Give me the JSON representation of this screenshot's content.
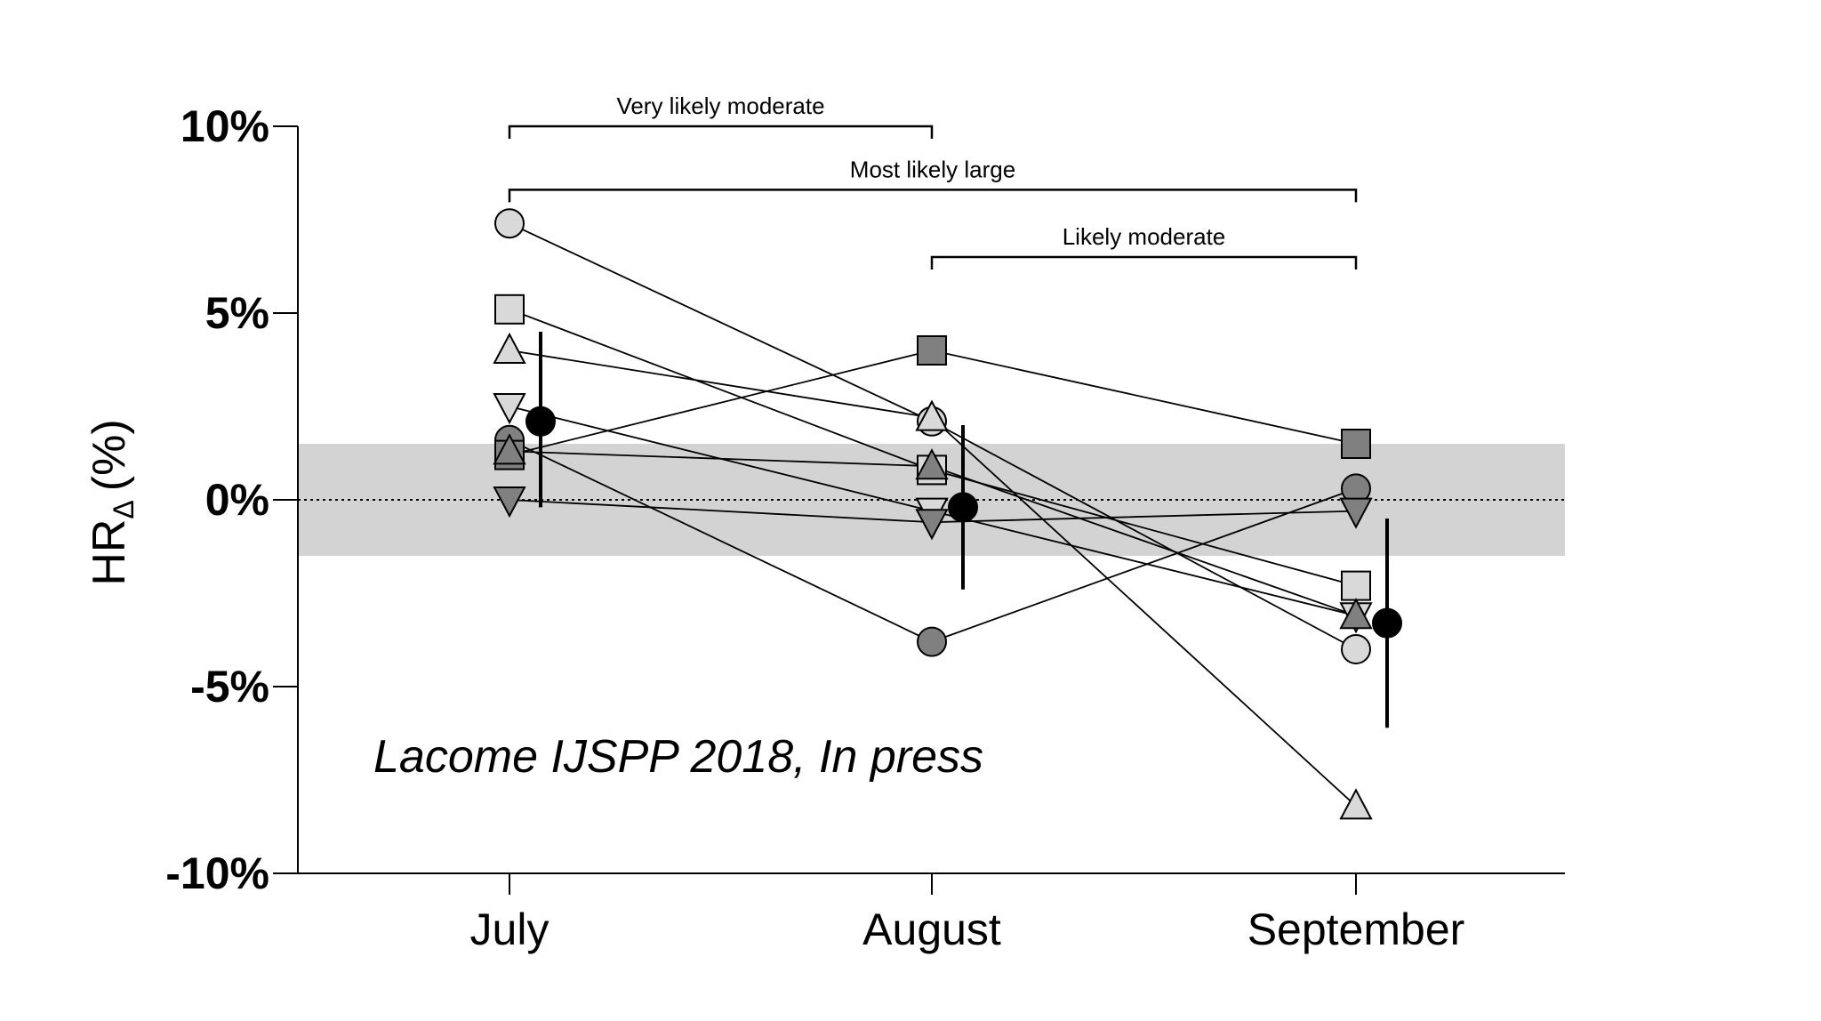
{
  "chart_data": {
    "type": "line",
    "categories": [
      "July",
      "August",
      "September"
    ],
    "ylabel": {
      "main": "HR",
      "subscript": "Δ",
      "unit": "(%)"
    },
    "ylim": [
      -10,
      10
    ],
    "yticks": [
      10,
      5,
      0,
      -5,
      -10
    ],
    "ytick_labels": [
      "10%",
      "5%",
      "0%",
      "-5%",
      "-10%"
    ],
    "trivial_band": [
      -1.5,
      1.5
    ],
    "reference_line": 0,
    "series": [
      {
        "marker": "circle",
        "fill": "#d9d9d9",
        "values": [
          7.4,
          2.1,
          -4.0
        ]
      },
      {
        "marker": "square",
        "fill": "#d9d9d9",
        "values": [
          5.1,
          0.8,
          -2.3
        ]
      },
      {
        "marker": "triangle",
        "fill": "#d9d9d9",
        "values": [
          4.0,
          2.2,
          -8.2
        ]
      },
      {
        "marker": "triangle-down",
        "fill": "#d9d9d9",
        "values": [
          2.5,
          -0.3,
          -3.1
        ]
      },
      {
        "marker": "circle",
        "fill": "#808080",
        "values": [
          1.6,
          -3.8,
          0.3
        ]
      },
      {
        "marker": "square",
        "fill": "#808080",
        "values": [
          1.2,
          4.0,
          1.5
        ]
      },
      {
        "marker": "triangle",
        "fill": "#808080",
        "values": [
          1.3,
          0.9,
          -3.1
        ]
      },
      {
        "marker": "triangle-down",
        "fill": "#808080",
        "values": [
          0.0,
          -0.6,
          -0.3
        ]
      }
    ],
    "mean_series": {
      "marker": "circle",
      "fill": "#000000",
      "values": [
        2.1,
        -0.2,
        -3.3
      ],
      "error_low": [
        -0.2,
        -2.4,
        -6.1
      ],
      "error_high": [
        4.5,
        2.0,
        -0.5
      ]
    },
    "brackets": [
      {
        "from": 0,
        "to": 1,
        "level": 10,
        "label": "Very likely moderate"
      },
      {
        "from": 0,
        "to": 2,
        "level": 8.3,
        "label": "Most likely large"
      },
      {
        "from": 1,
        "to": 2,
        "level": 6.5,
        "label": "Likely moderate"
      }
    ],
    "annotation": "Lacome IJSPP 2018, In press"
  },
  "colors": {
    "band": "#d3d3d3",
    "axis": "#000000",
    "line": "#000000"
  }
}
